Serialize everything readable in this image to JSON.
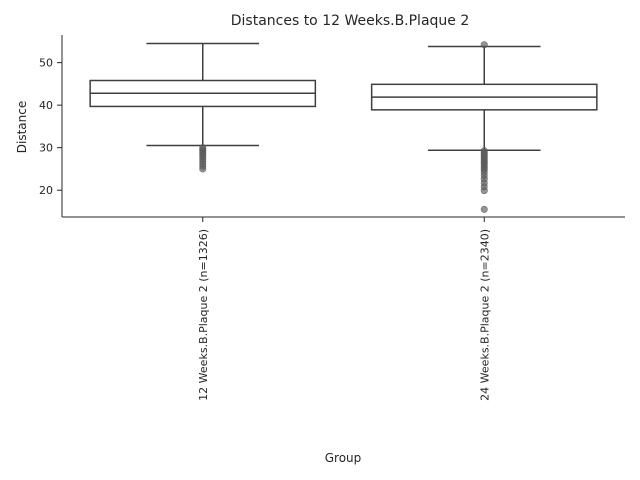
{
  "chart_data": {
    "type": "box",
    "title": "Distances to 12 Weeks.B.Plaque 2",
    "xlabel": "Group",
    "ylabel": "Distance",
    "ylim": [
      13.7,
      56.5
    ],
    "yticks": [
      20,
      30,
      40,
      50
    ],
    "grid": false,
    "categories": [
      "12 Weeks.B.Plaque 2 (n=1326)",
      "24 Weeks.B.Plaque 2 (n=2340)"
    ],
    "boxes": [
      {
        "q1": 39.7,
        "median": 42.8,
        "q3": 45.8,
        "whisker_low": 30.5,
        "whisker_high": 54.5,
        "outliers": [
          30.0,
          29.6,
          29.2,
          28.8,
          28.4,
          27.9,
          27.3,
          26.8,
          26.2,
          25.6,
          25.0
        ]
      },
      {
        "q1": 38.9,
        "median": 41.9,
        "q3": 44.9,
        "whisker_low": 29.4,
        "whisker_high": 53.8,
        "outliers": [
          54.2,
          29.3,
          28.9,
          28.5,
          28.1,
          27.7,
          27.3,
          26.9,
          26.5,
          26.1,
          25.7,
          25.2,
          24.8,
          24.2,
          23.4,
          22.6,
          21.7,
          20.8,
          19.9,
          15.5
        ]
      }
    ]
  },
  "colors": {
    "box_edge": "#3f3f3f",
    "outlier": "#5a5a5a",
    "text": "#262626",
    "axis": "#262626"
  }
}
